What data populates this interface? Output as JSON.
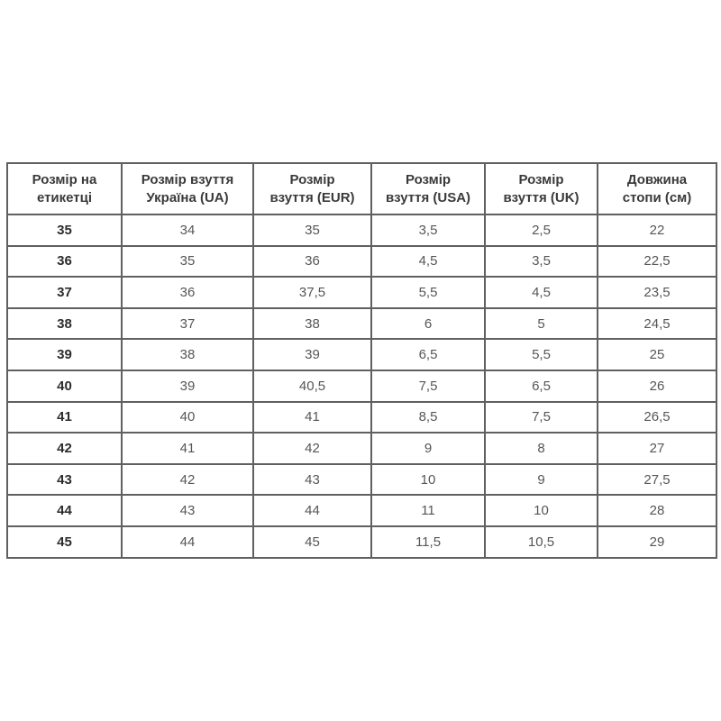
{
  "page": {
    "background_color": "#ffffff"
  },
  "table": {
    "border_color": "#606060",
    "header_text_color": "#3a3a3a",
    "cell_text_color": "#565656",
    "label_column_text_color": "#2d2d2d",
    "headers": [
      {
        "line1": "Розмір на",
        "line2": "етикетці"
      },
      {
        "line1": "Розмір взуття",
        "line2": "Україна (UA)"
      },
      {
        "line1": "Розмір",
        "line2": "взуття (EUR)"
      },
      {
        "line1": "Розмір",
        "line2": "взуття (USA)"
      },
      {
        "line1": "Розмір",
        "line2": "взуття (UK)"
      },
      {
        "line1": "Довжина",
        "line2": "стопи (см)"
      }
    ],
    "rows": [
      [
        "35",
        "34",
        "35",
        "3,5",
        "2,5",
        "22"
      ],
      [
        "36",
        "35",
        "36",
        "4,5",
        "3,5",
        "22,5"
      ],
      [
        "37",
        "36",
        "37,5",
        "5,5",
        "4,5",
        "23,5"
      ],
      [
        "38",
        "37",
        "38",
        "6",
        "5",
        "24,5"
      ],
      [
        "39",
        "38",
        "39",
        "6,5",
        "5,5",
        "25"
      ],
      [
        "40",
        "39",
        "40,5",
        "7,5",
        "6,5",
        "26"
      ],
      [
        "41",
        "40",
        "41",
        "8,5",
        "7,5",
        "26,5"
      ],
      [
        "42",
        "41",
        "42",
        "9",
        "8",
        "27"
      ],
      [
        "43",
        "42",
        "43",
        "10",
        "9",
        "27,5"
      ],
      [
        "44",
        "43",
        "44",
        "11",
        "10",
        "28"
      ],
      [
        "45",
        "44",
        "45",
        "11,5",
        "10,5",
        "29"
      ]
    ]
  }
}
